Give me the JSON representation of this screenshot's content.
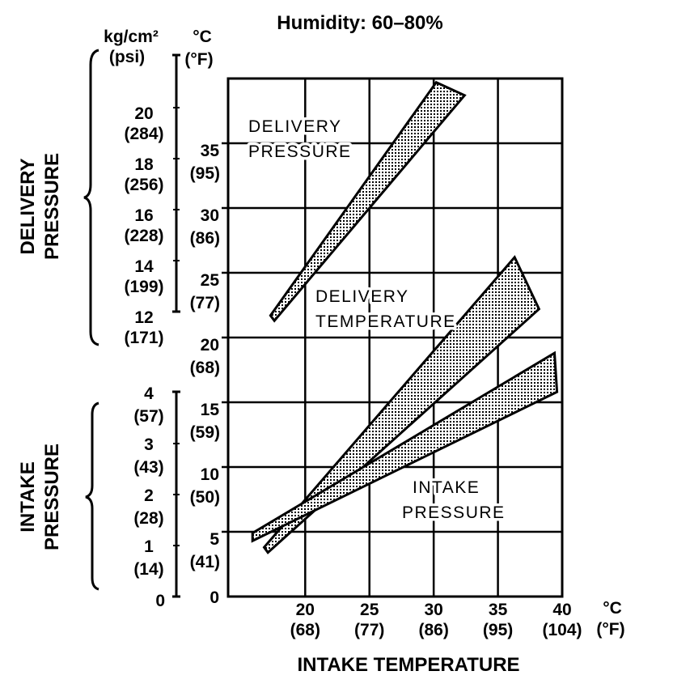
{
  "chart_data": {
    "type": "area",
    "title": "Humidity: 60–80%",
    "xlabel": "INTAKE TEMPERATURE",
    "x_unit": "°C",
    "x_unit_alt": "(°F)",
    "xlim": [
      14,
      40
    ],
    "x_ticks": [
      {
        "value": 20,
        "label": "20",
        "alt": "(68)"
      },
      {
        "value": 25,
        "label": "25",
        "alt": "(77)"
      },
      {
        "value": 30,
        "label": "30",
        "alt": "(86)"
      },
      {
        "value": 35,
        "label": "35",
        "alt": "(95)"
      },
      {
        "value": 40,
        "label": "40",
        "alt": "(104)"
      }
    ],
    "y_temp_axis": {
      "unit": "°C",
      "unit_alt": "(°F)",
      "ylim": [
        0,
        40
      ],
      "ticks": [
        {
          "value": 0,
          "label": "0",
          "alt": ""
        },
        {
          "value": 5,
          "label": "5",
          "alt": "(41)"
        },
        {
          "value": 10,
          "label": "10",
          "alt": "(50)"
        },
        {
          "value": 15,
          "label": "15",
          "alt": "(59)"
        },
        {
          "value": 20,
          "label": "20",
          "alt": "(68)"
        },
        {
          "value": 25,
          "label": "25",
          "alt": "(77)"
        },
        {
          "value": 30,
          "label": "30",
          "alt": "(86)"
        },
        {
          "value": 35,
          "label": "35",
          "alt": "(95)"
        }
      ]
    },
    "delivery_pressure_axis": {
      "title": [
        "DELIVERY",
        "PRESSURE"
      ],
      "unit": "kg/cm²",
      "unit_alt": "(psi)",
      "ticks": [
        {
          "value": 20,
          "label": "20",
          "alt": "(284)"
        },
        {
          "value": 18,
          "label": "18",
          "alt": "(256)"
        },
        {
          "value": 16,
          "label": "16",
          "alt": "(228)"
        },
        {
          "value": 14,
          "label": "14",
          "alt": "(199)"
        },
        {
          "value": 12,
          "label": "12",
          "alt": "(171)"
        }
      ]
    },
    "intake_pressure_axis": {
      "title": [
        "INTAKE",
        "PRESSURE"
      ],
      "ticks": [
        {
          "value": 4,
          "label": "4",
          "alt": "(57)"
        },
        {
          "value": 3,
          "label": "3",
          "alt": "(43)"
        },
        {
          "value": 2,
          "label": "2",
          "alt": "(28)"
        },
        {
          "value": 1,
          "label": "1",
          "alt": "(14)"
        },
        {
          "value": 0,
          "label": "0",
          "alt": ""
        }
      ]
    },
    "grid": true,
    "series": [
      {
        "name": "DELIVERY PRESSURE",
        "label_lines": [
          "DELIVERY",
          "PRESSURE"
        ],
        "band": [
          [
            17.3,
            21.7
          ],
          [
            30.2,
            39.7
          ],
          [
            32.4,
            38.7
          ],
          [
            17.6,
            21.3
          ]
        ]
      },
      {
        "name": "DELIVERY TEMPERATURE",
        "label_lines": [
          "DELIVERY",
          "TEMPERATURE"
        ],
        "band": [
          [
            16.8,
            3.8
          ],
          [
            36.3,
            26.2
          ],
          [
            38.2,
            22.2
          ],
          [
            17.1,
            3.4
          ]
        ]
      },
      {
        "name": "INTAKE PRESSURE",
        "label_lines": [
          "INTAKE",
          "PRESSURE"
        ],
        "band": [
          [
            15.9,
            4.9
          ],
          [
            39.4,
            18.8
          ],
          [
            39.6,
            15.8
          ],
          [
            15.9,
            4.3
          ]
        ]
      }
    ]
  }
}
